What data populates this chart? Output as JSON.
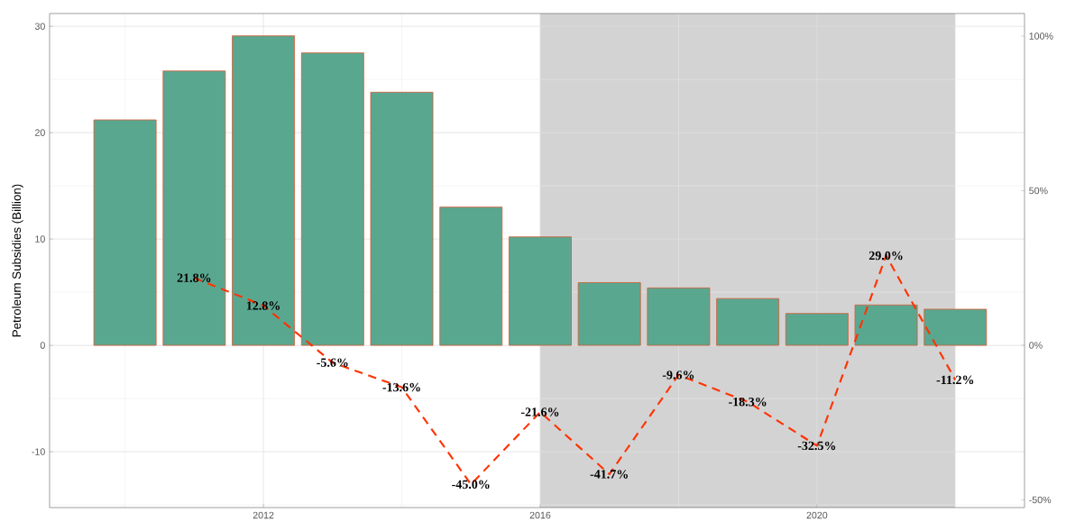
{
  "chart_data": {
    "type": "bar",
    "ylabel": "Petroleum Subsidies (Billion)",
    "xlim": [
      2008.91,
      2023.0
    ],
    "xticks": [
      2012,
      2016,
      2020
    ],
    "ylim": [
      -15.25,
      31.2
    ],
    "yticks": [
      -10,
      0,
      10,
      20,
      30
    ],
    "y2lim": [
      -52.5,
      107.3
    ],
    "y2ticks": [
      {
        "value": -50,
        "label": "-50%"
      },
      {
        "value": 0,
        "label": "0%"
      },
      {
        "value": 50,
        "label": "50%"
      },
      {
        "value": 100,
        "label": "100%"
      }
    ],
    "grid": true,
    "bands": [
      {
        "axis": "x",
        "from": 2016,
        "to": 2022,
        "color": "#d3d3d3"
      }
    ],
    "series": [
      {
        "color": "#5aa790",
        "x": [
          2010,
          2011,
          2012,
          2013,
          2014,
          2015,
          2016,
          2017,
          2018,
          2019,
          2020,
          2021,
          2022
        ],
        "values": [
          21.2,
          25.8,
          29.1,
          27.5,
          23.8,
          13.0,
          10.2,
          5.9,
          5.4,
          4.4,
          3.0,
          3.8,
          3.4
        ]
      },
      {
        "type": "line",
        "axis": "y2",
        "color": "#ff3300",
        "line_style": "dashed",
        "x": [
          2011,
          2012,
          2013,
          2014,
          2015,
          2016,
          2017,
          2018,
          2019,
          2020,
          2021,
          2022
        ],
        "values": [
          21.8,
          12.8,
          -5.6,
          -13.6,
          -45.0,
          -21.6,
          -41.7,
          -9.6,
          -18.3,
          -32.5,
          29.0,
          -11.2
        ],
        "value_labels": [
          "21.8%",
          "12.8%",
          "-5.6%",
          "-13.6%",
          "-45.0%",
          "-21.6%",
          "-41.7%",
          "-9.6%",
          "-18.3%",
          "-32.5%",
          "29.0%",
          "-11.2%"
        ]
      }
    ]
  }
}
